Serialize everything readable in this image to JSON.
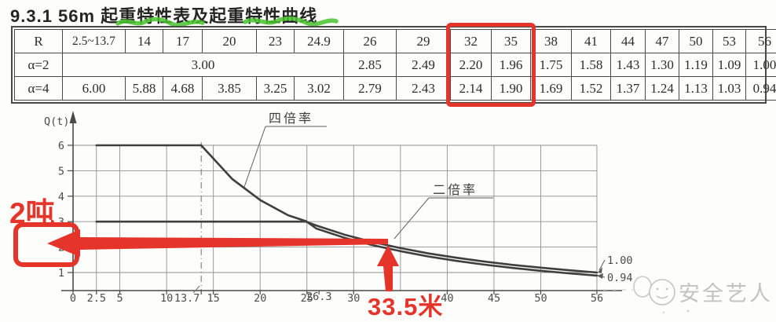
{
  "title": "9.3.1 56m 起重特性表及起重特性曲线",
  "table": {
    "corner_label": "R",
    "alpha2_label": "α=2",
    "alpha4_label": "α=4",
    "radii": [
      "2.5~13.7",
      "14",
      "17",
      "20",
      "23",
      "24.9",
      "26",
      "29",
      "32",
      "35",
      "38",
      "41",
      "44",
      "47",
      "50",
      "53",
      "56"
    ],
    "alpha2_merged_value": "3.00",
    "alpha2_values": [
      "2.85",
      "2.49",
      "2.20",
      "1.96",
      "1.75",
      "1.58",
      "1.43",
      "1.30",
      "1.19",
      "1.09",
      "1.00"
    ],
    "alpha4_values": [
      "6.00",
      "5.88",
      "4.68",
      "3.85",
      "3.25",
      "3.02",
      "2.79",
      "2.43",
      "2.14",
      "1.90",
      "1.69",
      "1.52",
      "1.37",
      "1.24",
      "1.13",
      "1.03",
      "0.94"
    ],
    "highlighted_radii": [
      "32",
      "35"
    ]
  },
  "chart_data": {
    "type": "line",
    "title": "",
    "xlabel": "",
    "ylabel": "Q(t)",
    "xlim": [
      0,
      56
    ],
    "ylim": [
      1,
      6
    ],
    "grid": true,
    "x_gridlines": [
      2.5,
      5,
      10,
      15,
      20,
      25,
      30,
      35,
      40,
      45,
      50,
      56
    ],
    "x_dashed_gridlines": [
      13.7
    ],
    "x_ticks": [
      {
        "v": 0,
        "label": "0"
      },
      {
        "v": 2.5,
        "label": "2.5"
      },
      {
        "v": 5,
        "label": "5"
      },
      {
        "v": 10,
        "label": "10"
      },
      {
        "v": 13.7,
        "label": "13.7",
        "dx": -18,
        "leader": true
      },
      {
        "v": 15,
        "label": "15"
      },
      {
        "v": 20,
        "label": "20"
      },
      {
        "v": 25,
        "label": "25"
      },
      {
        "v": 26.3,
        "label": "26.3",
        "dy": -2
      },
      {
        "v": 30,
        "label": "30"
      },
      {
        "v": 40,
        "label": "40"
      },
      {
        "v": 45,
        "label": "45"
      },
      {
        "v": 50,
        "label": "50"
      },
      {
        "v": 56,
        "label": "56"
      }
    ],
    "y_ticks": [
      {
        "v": 1,
        "label": "1"
      },
      {
        "v": 2,
        "label": "2"
      },
      {
        "v": 3,
        "label": "3"
      },
      {
        "v": 4,
        "label": "4"
      },
      {
        "v": 5,
        "label": "5"
      },
      {
        "v": 6,
        "label": "6"
      }
    ],
    "series": [
      {
        "name": "四倍率",
        "points": [
          [
            2.5,
            6.0
          ],
          [
            13.7,
            6.0
          ],
          [
            14,
            5.88
          ],
          [
            17,
            4.68
          ],
          [
            20,
            3.85
          ],
          [
            23,
            3.25
          ],
          [
            24.9,
            3.02
          ],
          [
            26,
            2.79
          ],
          [
            29,
            2.43
          ],
          [
            32,
            2.14
          ],
          [
            35,
            1.9
          ],
          [
            38,
            1.69
          ],
          [
            41,
            1.52
          ],
          [
            44,
            1.37
          ],
          [
            47,
            1.24
          ],
          [
            50,
            1.13
          ],
          [
            53,
            1.03
          ],
          [
            56,
            0.94
          ]
        ]
      },
      {
        "name": "二倍率",
        "points": [
          [
            2.5,
            3.0
          ],
          [
            24.9,
            3.0
          ],
          [
            26,
            2.85
          ],
          [
            29,
            2.49
          ],
          [
            32,
            2.2
          ],
          [
            35,
            1.96
          ],
          [
            38,
            1.75
          ],
          [
            41,
            1.58
          ],
          [
            44,
            1.43
          ],
          [
            47,
            1.3
          ],
          [
            50,
            1.19
          ],
          [
            53,
            1.09
          ],
          [
            56,
            1.0
          ]
        ]
      }
    ],
    "end_labels": [
      {
        "text": "1.00"
      },
      {
        "text": "0.94"
      }
    ],
    "legend_position": "inline-leader-labels"
  },
  "annotations": {
    "load_label": "2吨",
    "radius_label": "33.5米"
  },
  "watermark": {
    "text": "安全艺人"
  },
  "colors": {
    "annotation_red": "#e5352b",
    "underline_green": "#49c32d",
    "curve": "#3f3f3f",
    "grid": "#909090",
    "axis": "#4a4a4a",
    "watermark_gray": "#c2c2c2"
  }
}
